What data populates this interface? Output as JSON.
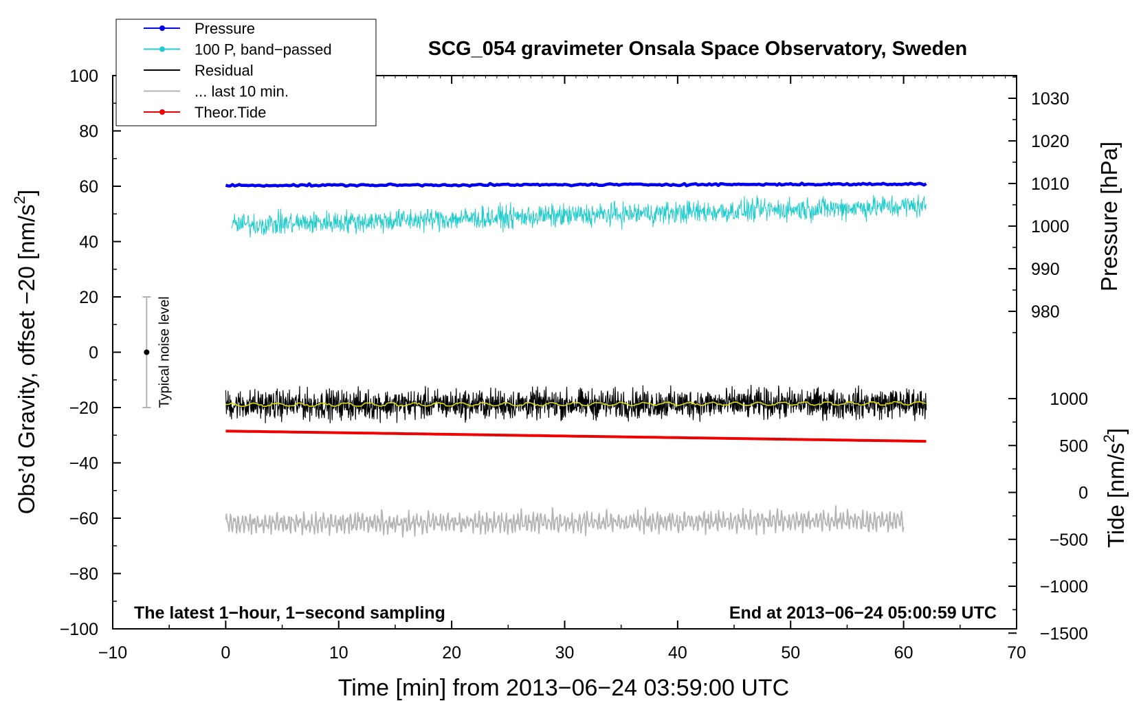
{
  "chart_data": {
    "type": "line",
    "title": "SCG_054 gravimeter Onsala Space Observatory, Sweden",
    "xlabel": "Time [min] from 2013−06−24 03:59:00 UTC",
    "ylabel_left_main": "Obs’d Gravity, offset −20 [nm/s",
    "ylabel_left_sup": "2",
    "ylabel_left_end": "]",
    "ylabel_right_top": "Pressure [hPa]",
    "ylabel_right_bottom_main": "Tide [nm/s",
    "ylabel_right_bottom_sup": "2",
    "ylabel_right_bottom_end": "]",
    "xlim": [
      -10,
      70
    ],
    "ylim": [
      -100,
      100
    ],
    "x_ticks": [
      "−10",
      "0",
      "10",
      "20",
      "30",
      "40",
      "50",
      "60",
      "70"
    ],
    "x_tick_values": [
      -10,
      0,
      10,
      20,
      30,
      40,
      50,
      60,
      70
    ],
    "y_ticks": [
      "100",
      "80",
      "60",
      "40",
      "20",
      "0",
      "−20",
      "−40",
      "−60",
      "−80",
      "−100"
    ],
    "y_tick_values": [
      100,
      80,
      60,
      40,
      20,
      0,
      -20,
      -40,
      -60,
      -80,
      -100
    ],
    "pressure_ticks": [
      "1030",
      "1020",
      "1010",
      "1000",
      "990",
      "980"
    ],
    "pressure_tick_values": [
      1030,
      1020,
      1010,
      1000,
      990,
      980
    ],
    "tide_ticks": [
      "1000",
      "500",
      "0",
      "−500",
      "−1000",
      "−1500"
    ],
    "tide_tick_values": [
      1000,
      500,
      0,
      -500,
      -1000,
      -1500
    ],
    "grid": false,
    "legend_position": "top-left",
    "legend": [
      {
        "label": "Pressure",
        "color": "#0000ee",
        "marker": true
      },
      {
        "label": "100 P, band−passed",
        "color": "#22cccc",
        "marker": true
      },
      {
        "label": "Residual",
        "color": "#000000",
        "marker": false
      },
      {
        "label": "... last 10 min.",
        "color": "#b4b4b4",
        "marker": false
      },
      {
        "label": "Theor.Tide",
        "color": "#ee0000",
        "marker": true
      }
    ],
    "noise_bar": {
      "label": "Typical noise level",
      "x": -7,
      "center": 0,
      "range": [
        -20,
        20
      ]
    },
    "annotation_left": "The latest 1−hour, 1−second sampling",
    "annotation_right": "End at 2013−06−24 05:00:59 UTC",
    "series": [
      {
        "name": "Pressure",
        "color": "#0000ee",
        "x_range": [
          0,
          62
        ],
        "y_start": 60.3,
        "y_end": 60.8,
        "noise": 0.3
      },
      {
        "name": "100 P, band−passed",
        "color": "#22cccc",
        "x_range": [
          0.5,
          62
        ],
        "y_start": 46,
        "y_end": 53,
        "noise": 3.5
      },
      {
        "name": "Residual",
        "color": "#000000",
        "x_range": [
          0,
          62
        ],
        "y_start": -19,
        "y_end": -18.5,
        "noise": 4.5
      },
      {
        "name": "smoothed residual",
        "color": "#dddd00",
        "x_range": [
          0,
          62
        ],
        "y_start": -19,
        "y_end": -18.5,
        "noise": 0.6
      },
      {
        "name": "... last 10 min.",
        "color": "#b4b4b4",
        "x_range": [
          0,
          60
        ],
        "y_start": -62,
        "y_end": -61,
        "noise": 4
      },
      {
        "name": "Theor.Tide",
        "color": "#ee0000",
        "x_range": [
          0,
          62
        ],
        "y_start": -28.5,
        "y_end": -32.2,
        "noise": 0
      }
    ]
  }
}
